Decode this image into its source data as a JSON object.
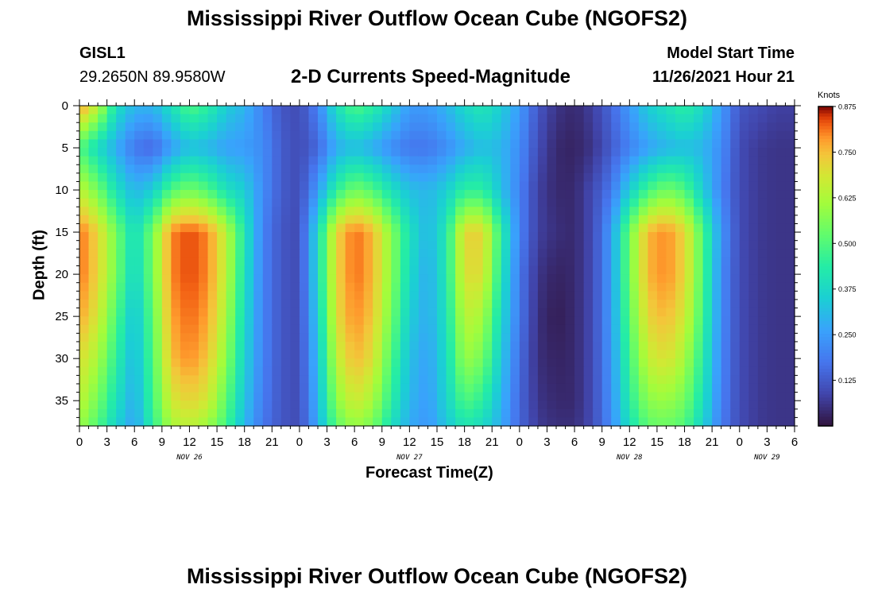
{
  "page": {
    "title": "Mississippi River Outflow Ocean Cube (NGOFS2)",
    "station_id": "GISL1",
    "coords": "29.2650N  89.9580W",
    "subtitle": "2-D Currents Speed-Magnitude",
    "model_start_label": "Model Start Time",
    "model_start_value": "11/26/2021 Hour 21",
    "second_title": "Mississippi River Outflow Ocean Cube (NGOFS2)"
  },
  "chart_data": {
    "type": "heatmap",
    "title": "2-D Currents Speed-Magnitude",
    "xlabel": "Forecast Time(Z)",
    "ylabel": "Depth (ft)",
    "x_range_hours": [
      0,
      78
    ],
    "x_start": "2021-11-26 00Z",
    "x_tick_labels": [
      "0",
      "3",
      "6",
      "9",
      "12",
      "15",
      "18",
      "21",
      "0",
      "3",
      "6",
      "9",
      "12",
      "15",
      "18",
      "21",
      "0",
      "3",
      "6",
      "9",
      "12",
      "15",
      "18",
      "21",
      "0",
      "3",
      "6"
    ],
    "date_labels": [
      {
        "label": "NOV 26",
        "hour": 12
      },
      {
        "label": "NOV 27",
        "hour": 36
      },
      {
        "label": "NOV 28",
        "hour": 60
      },
      {
        "label": "NOV 29",
        "hour": 75
      }
    ],
    "y_range_ft": [
      0,
      38
    ],
    "y_inverted": true,
    "y_ticks": [
      0,
      5,
      10,
      15,
      20,
      25,
      30,
      35
    ],
    "colorbar": {
      "label": "Knots",
      "range": [
        0,
        0.875
      ],
      "ticks": [
        "0.875",
        "0.750",
        "0.625",
        "0.500",
        "0.375",
        "0.250",
        "0.125"
      ],
      "colormap": "turbo"
    },
    "time_hours": [
      0,
      2,
      4,
      6,
      8,
      10,
      12,
      14,
      16,
      18,
      20,
      22,
      24,
      26,
      28,
      30,
      32,
      34,
      36,
      38,
      40,
      42,
      44,
      46,
      48,
      50,
      52,
      54,
      56,
      58,
      60,
      62,
      64,
      66,
      68,
      70,
      72,
      74,
      76,
      78
    ],
    "depth_ft": [
      0,
      5,
      10,
      15,
      20,
      25,
      30,
      35,
      38
    ],
    "values_knots": [
      [
        0.8,
        0.65,
        0.4,
        0.3,
        0.3,
        0.4,
        0.5,
        0.45,
        0.35,
        0.3,
        0.2,
        0.12,
        0.1,
        0.2,
        0.4,
        0.5,
        0.45,
        0.35,
        0.25,
        0.25,
        0.3,
        0.38,
        0.42,
        0.35,
        0.25,
        0.12,
        0.06,
        0.04,
        0.08,
        0.15,
        0.25,
        0.35,
        0.4,
        0.45,
        0.38,
        0.25,
        0.12,
        0.1,
        0.08,
        0.08
      ],
      [
        0.5,
        0.38,
        0.28,
        0.18,
        0.15,
        0.25,
        0.32,
        0.3,
        0.26,
        0.25,
        0.22,
        0.13,
        0.1,
        0.15,
        0.28,
        0.32,
        0.28,
        0.22,
        0.18,
        0.18,
        0.22,
        0.28,
        0.32,
        0.3,
        0.22,
        0.1,
        0.04,
        0.03,
        0.06,
        0.13,
        0.2,
        0.26,
        0.3,
        0.32,
        0.3,
        0.22,
        0.1,
        0.07,
        0.06,
        0.06
      ],
      [
        0.65,
        0.55,
        0.4,
        0.3,
        0.35,
        0.5,
        0.55,
        0.5,
        0.4,
        0.35,
        0.22,
        0.13,
        0.1,
        0.25,
        0.45,
        0.55,
        0.5,
        0.4,
        0.32,
        0.3,
        0.35,
        0.45,
        0.45,
        0.32,
        0.2,
        0.08,
        0.04,
        0.04,
        0.1,
        0.18,
        0.35,
        0.48,
        0.55,
        0.5,
        0.35,
        0.2,
        0.1,
        0.07,
        0.06,
        0.06
      ],
      [
        0.82,
        0.72,
        0.55,
        0.38,
        0.55,
        0.8,
        0.84,
        0.8,
        0.65,
        0.42,
        0.2,
        0.12,
        0.1,
        0.38,
        0.72,
        0.82,
        0.76,
        0.58,
        0.4,
        0.3,
        0.42,
        0.72,
        0.72,
        0.45,
        0.2,
        0.08,
        0.05,
        0.04,
        0.1,
        0.25,
        0.55,
        0.76,
        0.8,
        0.72,
        0.5,
        0.24,
        0.1,
        0.07,
        0.06,
        0.06
      ],
      [
        0.82,
        0.72,
        0.55,
        0.36,
        0.55,
        0.8,
        0.84,
        0.8,
        0.65,
        0.4,
        0.2,
        0.12,
        0.1,
        0.38,
        0.72,
        0.82,
        0.76,
        0.58,
        0.38,
        0.28,
        0.42,
        0.7,
        0.7,
        0.42,
        0.18,
        0.06,
        0.03,
        0.04,
        0.1,
        0.25,
        0.55,
        0.76,
        0.8,
        0.72,
        0.5,
        0.22,
        0.1,
        0.07,
        0.06,
        0.06
      ],
      [
        0.78,
        0.68,
        0.5,
        0.32,
        0.52,
        0.78,
        0.82,
        0.78,
        0.62,
        0.38,
        0.2,
        0.12,
        0.1,
        0.35,
        0.7,
        0.8,
        0.74,
        0.55,
        0.35,
        0.28,
        0.4,
        0.65,
        0.62,
        0.38,
        0.18,
        0.05,
        0.02,
        0.04,
        0.1,
        0.25,
        0.52,
        0.72,
        0.76,
        0.68,
        0.48,
        0.22,
        0.1,
        0.07,
        0.06,
        0.06
      ],
      [
        0.7,
        0.62,
        0.45,
        0.3,
        0.5,
        0.75,
        0.8,
        0.74,
        0.58,
        0.36,
        0.2,
        0.12,
        0.1,
        0.32,
        0.65,
        0.76,
        0.7,
        0.5,
        0.32,
        0.26,
        0.38,
        0.6,
        0.55,
        0.34,
        0.16,
        0.05,
        0.03,
        0.04,
        0.1,
        0.24,
        0.48,
        0.66,
        0.7,
        0.62,
        0.44,
        0.21,
        0.1,
        0.07,
        0.06,
        0.06
      ],
      [
        0.65,
        0.55,
        0.4,
        0.28,
        0.48,
        0.68,
        0.72,
        0.68,
        0.52,
        0.33,
        0.19,
        0.12,
        0.1,
        0.3,
        0.58,
        0.68,
        0.62,
        0.45,
        0.3,
        0.25,
        0.36,
        0.5,
        0.45,
        0.3,
        0.15,
        0.06,
        0.04,
        0.04,
        0.1,
        0.23,
        0.44,
        0.58,
        0.6,
        0.55,
        0.4,
        0.2,
        0.1,
        0.07,
        0.06,
        0.06
      ],
      [
        0.6,
        0.5,
        0.36,
        0.26,
        0.45,
        0.62,
        0.65,
        0.6,
        0.48,
        0.3,
        0.18,
        0.12,
        0.1,
        0.28,
        0.52,
        0.6,
        0.55,
        0.4,
        0.28,
        0.24,
        0.33,
        0.42,
        0.38,
        0.28,
        0.15,
        0.07,
        0.05,
        0.05,
        0.1,
        0.22,
        0.4,
        0.52,
        0.54,
        0.5,
        0.36,
        0.19,
        0.1,
        0.07,
        0.06,
        0.06
      ]
    ]
  }
}
